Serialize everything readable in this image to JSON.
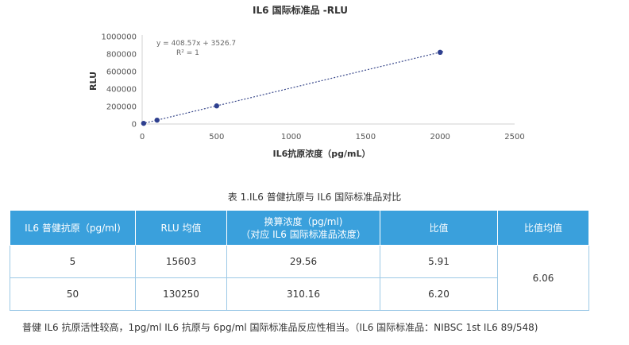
{
  "chart_data": {
    "type": "scatter",
    "title": "IL6 国际标准品 -RLU",
    "xlabel": "IL6抗原浓度（pg/mL）",
    "ylabel": "RLU",
    "xlim": [
      0,
      2500
    ],
    "ylim": [
      0,
      1000000
    ],
    "x_ticks": [
      "0",
      "500",
      "1000",
      "1500",
      "2000",
      "2500"
    ],
    "y_ticks": [
      "0",
      "200000",
      "400000",
      "600000",
      "800000",
      "1000000"
    ],
    "x_tick_values": [
      0,
      500,
      1000,
      1500,
      2000,
      2500
    ],
    "y_tick_values": [
      0,
      200000,
      400000,
      600000,
      800000,
      1000000
    ],
    "points": [
      {
        "x": 10,
        "y": 7600
      },
      {
        "x": 100,
        "y": 44000
      },
      {
        "x": 500,
        "y": 207000
      },
      {
        "x": 2000,
        "y": 820000
      }
    ],
    "trendline": {
      "slope": 408.57,
      "intercept": 3526.7
    },
    "equation": "y = 408.57x + 3526.7",
    "r_squared_label": "R² = 1",
    "grid": false
  },
  "table": {
    "caption": "表 1.IL6 普健抗原与 IL6 国际标准品对比",
    "headers": [
      "IL6 普健抗原（pg/ml)",
      "RLU 均值",
      "换算浓度（pg/ml)\n（对应 IL6 国际标准品浓度）",
      "比值",
      "比值均值"
    ],
    "rows": [
      [
        "5",
        "15603",
        "29.56",
        "5.91"
      ],
      [
        "50",
        "130250",
        "310.16",
        "6.20"
      ]
    ],
    "ratio_mean": "6.06"
  },
  "footnote": "普健 IL6 抗原活性较高，1pg/ml IL6 抗原与 6pg/ml 国际标准品反应性相当。（IL6 国际标准品：NIBSC 1st IL6 89/548)",
  "colors": {
    "header_bg": "#3aa0dc",
    "point": "#2e3f8f",
    "trendline": "#3b4a8c",
    "table_border": "#9cc9e6"
  }
}
